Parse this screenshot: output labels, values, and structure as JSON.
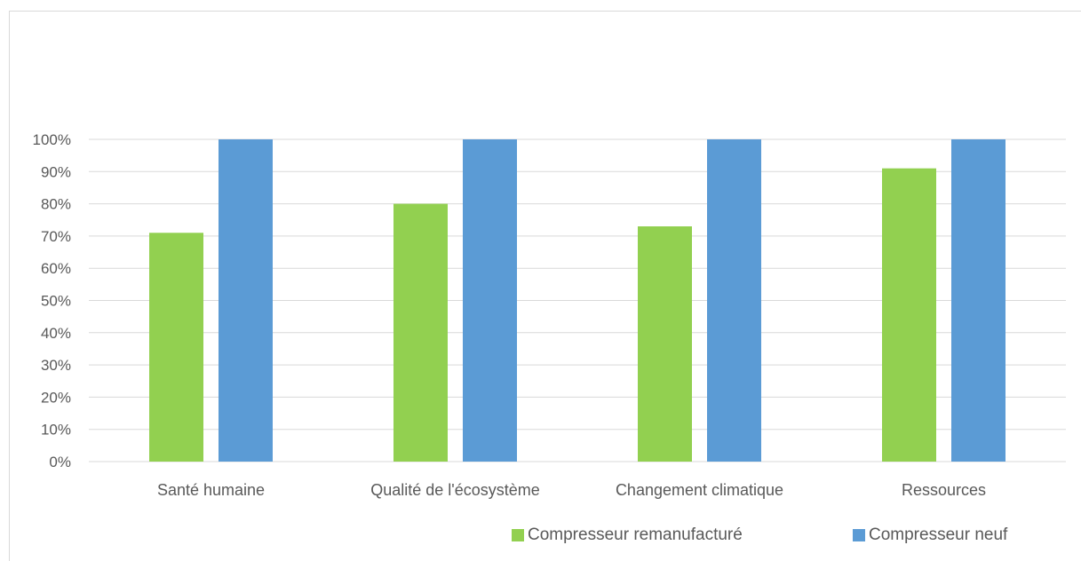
{
  "chart_data": {
    "type": "bar",
    "categories": [
      "Santé humaine",
      "Qualité de l'écosystème",
      "Changement climatique",
      "Ressources"
    ],
    "series": [
      {
        "name": "Compresseur remanufacturé",
        "values": [
          71,
          80,
          73,
          91
        ],
        "color": "#92d050"
      },
      {
        "name": "Compresseur neuf",
        "values": [
          100,
          100,
          100,
          100
        ],
        "color": "#5b9bd5"
      }
    ],
    "y_ticks": [
      "0%",
      "10%",
      "20%",
      "30%",
      "40%",
      "50%",
      "60%",
      "70%",
      "80%",
      "90%",
      "100%"
    ],
    "ylim": [
      0,
      100
    ],
    "grid": true,
    "legend_position": "bottom-right",
    "title": "",
    "xlabel": "",
    "ylabel": ""
  }
}
